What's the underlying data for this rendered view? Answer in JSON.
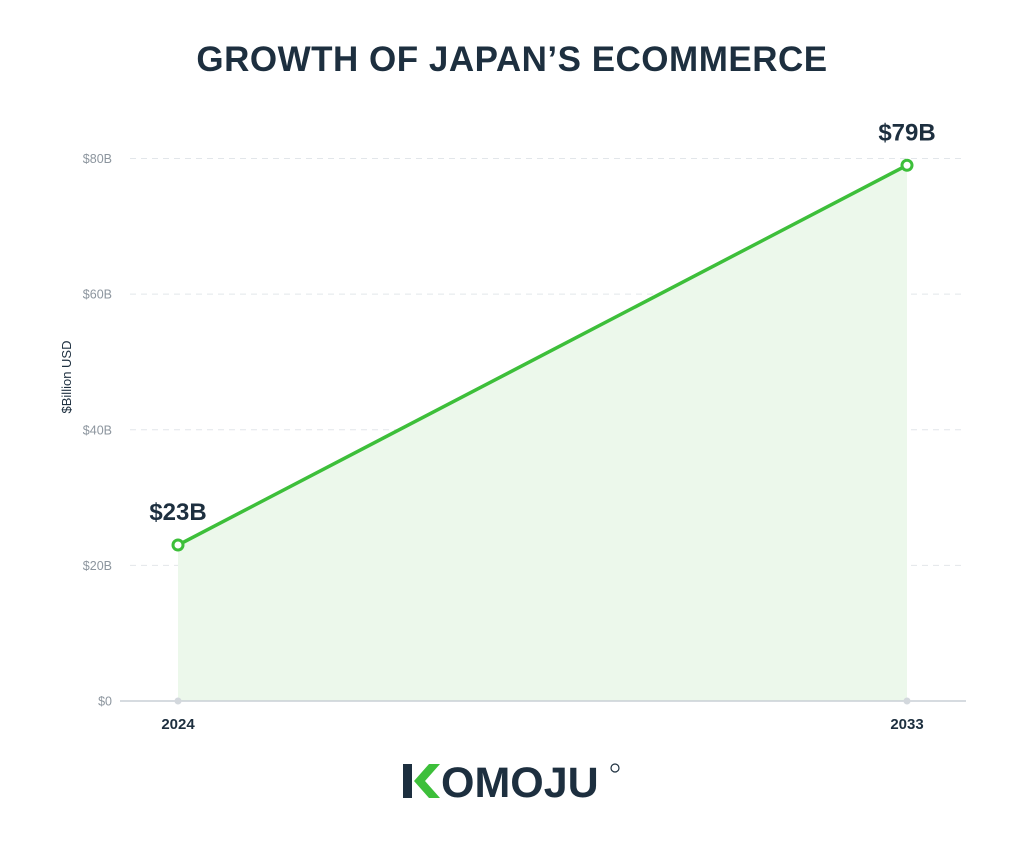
{
  "chart_data": {
    "type": "area",
    "title": "GROWTH OF JAPAN’S ECOMMERCE",
    "xlabel": "",
    "ylabel": "$Billion USD",
    "x": [
      "2024",
      "2033"
    ],
    "series": [
      {
        "values": [
          23,
          79
        ],
        "labels": [
          "$23B",
          "$79B"
        ]
      }
    ],
    "ylim": [
      0,
      80
    ],
    "yticks": [
      0,
      20,
      40,
      60,
      80
    ],
    "ytick_labels": [
      "$0",
      "$20B",
      "$40B",
      "$60B",
      "$80B"
    ],
    "grid": true,
    "colors": {
      "line": "#3dbf3a",
      "fill": "#ecf8eb",
      "grid": "#e2e6ea",
      "axis": "#c9cfd6",
      "title": "#1d2f3f",
      "tick": "#8c959e"
    }
  },
  "brand": {
    "logo_text": "KOMOJU",
    "colors": {
      "mark": "#3dbf3a",
      "text": "#1d2f3f"
    }
  }
}
